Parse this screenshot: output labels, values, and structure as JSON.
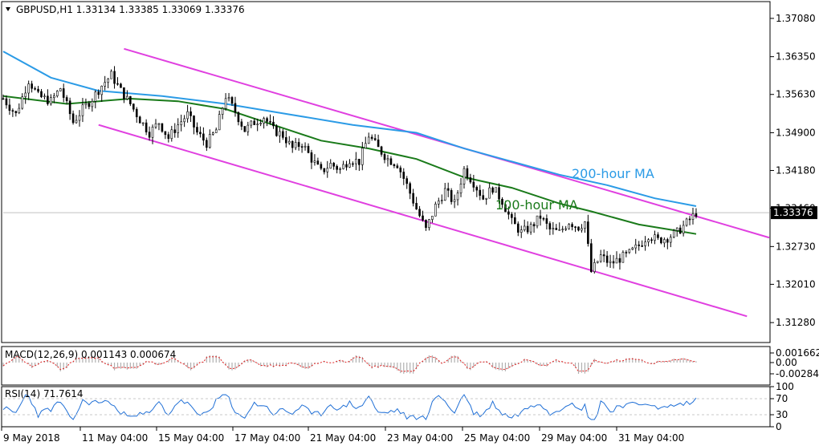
{
  "header": {
    "symbol": "GBPUSD,H1",
    "open": "1.33134",
    "high": "1.33385",
    "low": "1.33069",
    "close": "1.33376"
  },
  "colors": {
    "price": "#000000",
    "ma100": "#1a7a1a",
    "ma200": "#2b9be6",
    "channel": "#e040e0",
    "current_line": "#c0c0c0",
    "macd_hist": "#b0b0b0",
    "macd_signal": "#e02020",
    "rsi": "#1f6fd6",
    "price_tag_bg": "#000000",
    "price_tag_fg": "#ffffff"
  },
  "annotations": {
    "ma200_label": "200-hour MA",
    "ma100_label": "100-hour MA"
  },
  "current_price_tag": "1.33376",
  "macd": {
    "label": "MACD(12,26,9) 0.001143 0.000674",
    "tick_labels": [
      "0.001662",
      "0.00",
      "-0.002845"
    ]
  },
  "rsi": {
    "label": "RSI(14) 71.7614",
    "tick_labels": [
      "100",
      "70",
      "30",
      "0"
    ]
  },
  "chart_data": {
    "type": "candlestick",
    "price_axis_ticks": [
      "1.37080",
      "1.36350",
      "1.35630",
      "1.34900",
      "1.34180",
      "1.33460",
      "1.32730",
      "1.32010",
      "1.31280"
    ],
    "time_axis_labels": [
      "9 May 2018",
      "11 May 04:00",
      "15 May 04:00",
      "17 May 04:00",
      "21 May 04:00",
      "23 May 04:00",
      "25 May 04:00",
      "29 May 04:00",
      "31 May 04:00"
    ],
    "ylim": [
      1.309,
      1.374
    ],
    "current_price": 1.33376,
    "price_path": [
      [
        0,
        1.3555
      ],
      [
        4,
        1.3525
      ],
      [
        8,
        1.359
      ],
      [
        11,
        1.356
      ],
      [
        15,
        1.355
      ],
      [
        18,
        1.3575
      ],
      [
        22,
        1.351
      ],
      [
        25,
        1.3535
      ],
      [
        28,
        1.3555
      ],
      [
        31,
        1.358
      ],
      [
        34,
        1.36
      ],
      [
        37,
        1.357
      ],
      [
        40,
        1.3545
      ],
      [
        43,
        1.3515
      ],
      [
        46,
        1.349
      ],
      [
        49,
        1.351
      ],
      [
        52,
        1.348
      ],
      [
        55,
        1.3505
      ],
      [
        58,
        1.3525
      ],
      [
        61,
        1.349
      ],
      [
        64,
        1.347
      ],
      [
        67,
        1.3495
      ],
      [
        70,
        1.356
      ],
      [
        73,
        1.353
      ],
      [
        76,
        1.3495
      ],
      [
        79,
        1.351
      ],
      [
        82,
        1.352
      ],
      [
        85,
        1.3495
      ],
      [
        88,
        1.3485
      ],
      [
        91,
        1.346
      ],
      [
        94,
        1.347
      ],
      [
        97,
        1.344
      ],
      [
        100,
        1.3415
      ],
      [
        103,
        1.343
      ],
      [
        106,
        1.342
      ],
      [
        109,
        1.344
      ],
      [
        112,
        1.3435
      ],
      [
        115,
        1.3485
      ],
      [
        118,
        1.346
      ],
      [
        121,
        1.344
      ],
      [
        124,
        1.343
      ],
      [
        127,
        1.339
      ],
      [
        130,
        1.3345
      ],
      [
        133,
        1.3305
      ],
      [
        136,
        1.335
      ],
      [
        139,
        1.338
      ],
      [
        142,
        1.3355
      ],
      [
        145,
        1.342
      ],
      [
        148,
        1.3395
      ],
      [
        151,
        1.3365
      ],
      [
        154,
        1.3385
      ],
      [
        157,
        1.336
      ],
      [
        160,
        1.332
      ],
      [
        163,
        1.33
      ],
      [
        166,
        1.331
      ],
      [
        169,
        1.333
      ],
      [
        172,
        1.3305
      ],
      [
        175,
        1.33
      ],
      [
        178,
        1.332
      ],
      [
        181,
        1.331
      ],
      [
        183,
        1.332
      ],
      [
        185,
        1.3225
      ],
      [
        188,
        1.3255
      ],
      [
        191,
        1.324
      ],
      [
        194,
        1.325
      ],
      [
        197,
        1.326
      ],
      [
        200,
        1.3275
      ],
      [
        203,
        1.3295
      ],
      [
        206,
        1.3285
      ],
      [
        209,
        1.329
      ],
      [
        212,
        1.33
      ],
      [
        215,
        1.3318
      ],
      [
        218,
        1.33376
      ]
    ],
    "ma100": [
      [
        0,
        1.356
      ],
      [
        20,
        1.3545
      ],
      [
        40,
        1.3555
      ],
      [
        55,
        1.355
      ],
      [
        70,
        1.3535
      ],
      [
        85,
        1.3505
      ],
      [
        100,
        1.3475
      ],
      [
        115,
        1.346
      ],
      [
        130,
        1.344
      ],
      [
        145,
        1.3405
      ],
      [
        160,
        1.3385
      ],
      [
        175,
        1.3355
      ],
      [
        185,
        1.334
      ],
      [
        200,
        1.3315
      ],
      [
        210,
        1.3305
      ],
      [
        218,
        1.3297
      ]
    ],
    "ma200": [
      [
        0,
        1.3645
      ],
      [
        15,
        1.3595
      ],
      [
        30,
        1.357
      ],
      [
        50,
        1.356
      ],
      [
        70,
        1.3545
      ],
      [
        90,
        1.3525
      ],
      [
        110,
        1.3505
      ],
      [
        130,
        1.349
      ],
      [
        145,
        1.346
      ],
      [
        160,
        1.3435
      ],
      [
        175,
        1.341
      ],
      [
        190,
        1.339
      ],
      [
        205,
        1.3365
      ],
      [
        218,
        1.335
      ]
    ],
    "channel_upper": [
      [
        38,
        1.365
      ],
      [
        241,
        1.329
      ]
    ],
    "channel_lower": [
      [
        30,
        1.3505
      ],
      [
        234,
        1.314
      ]
    ]
  }
}
